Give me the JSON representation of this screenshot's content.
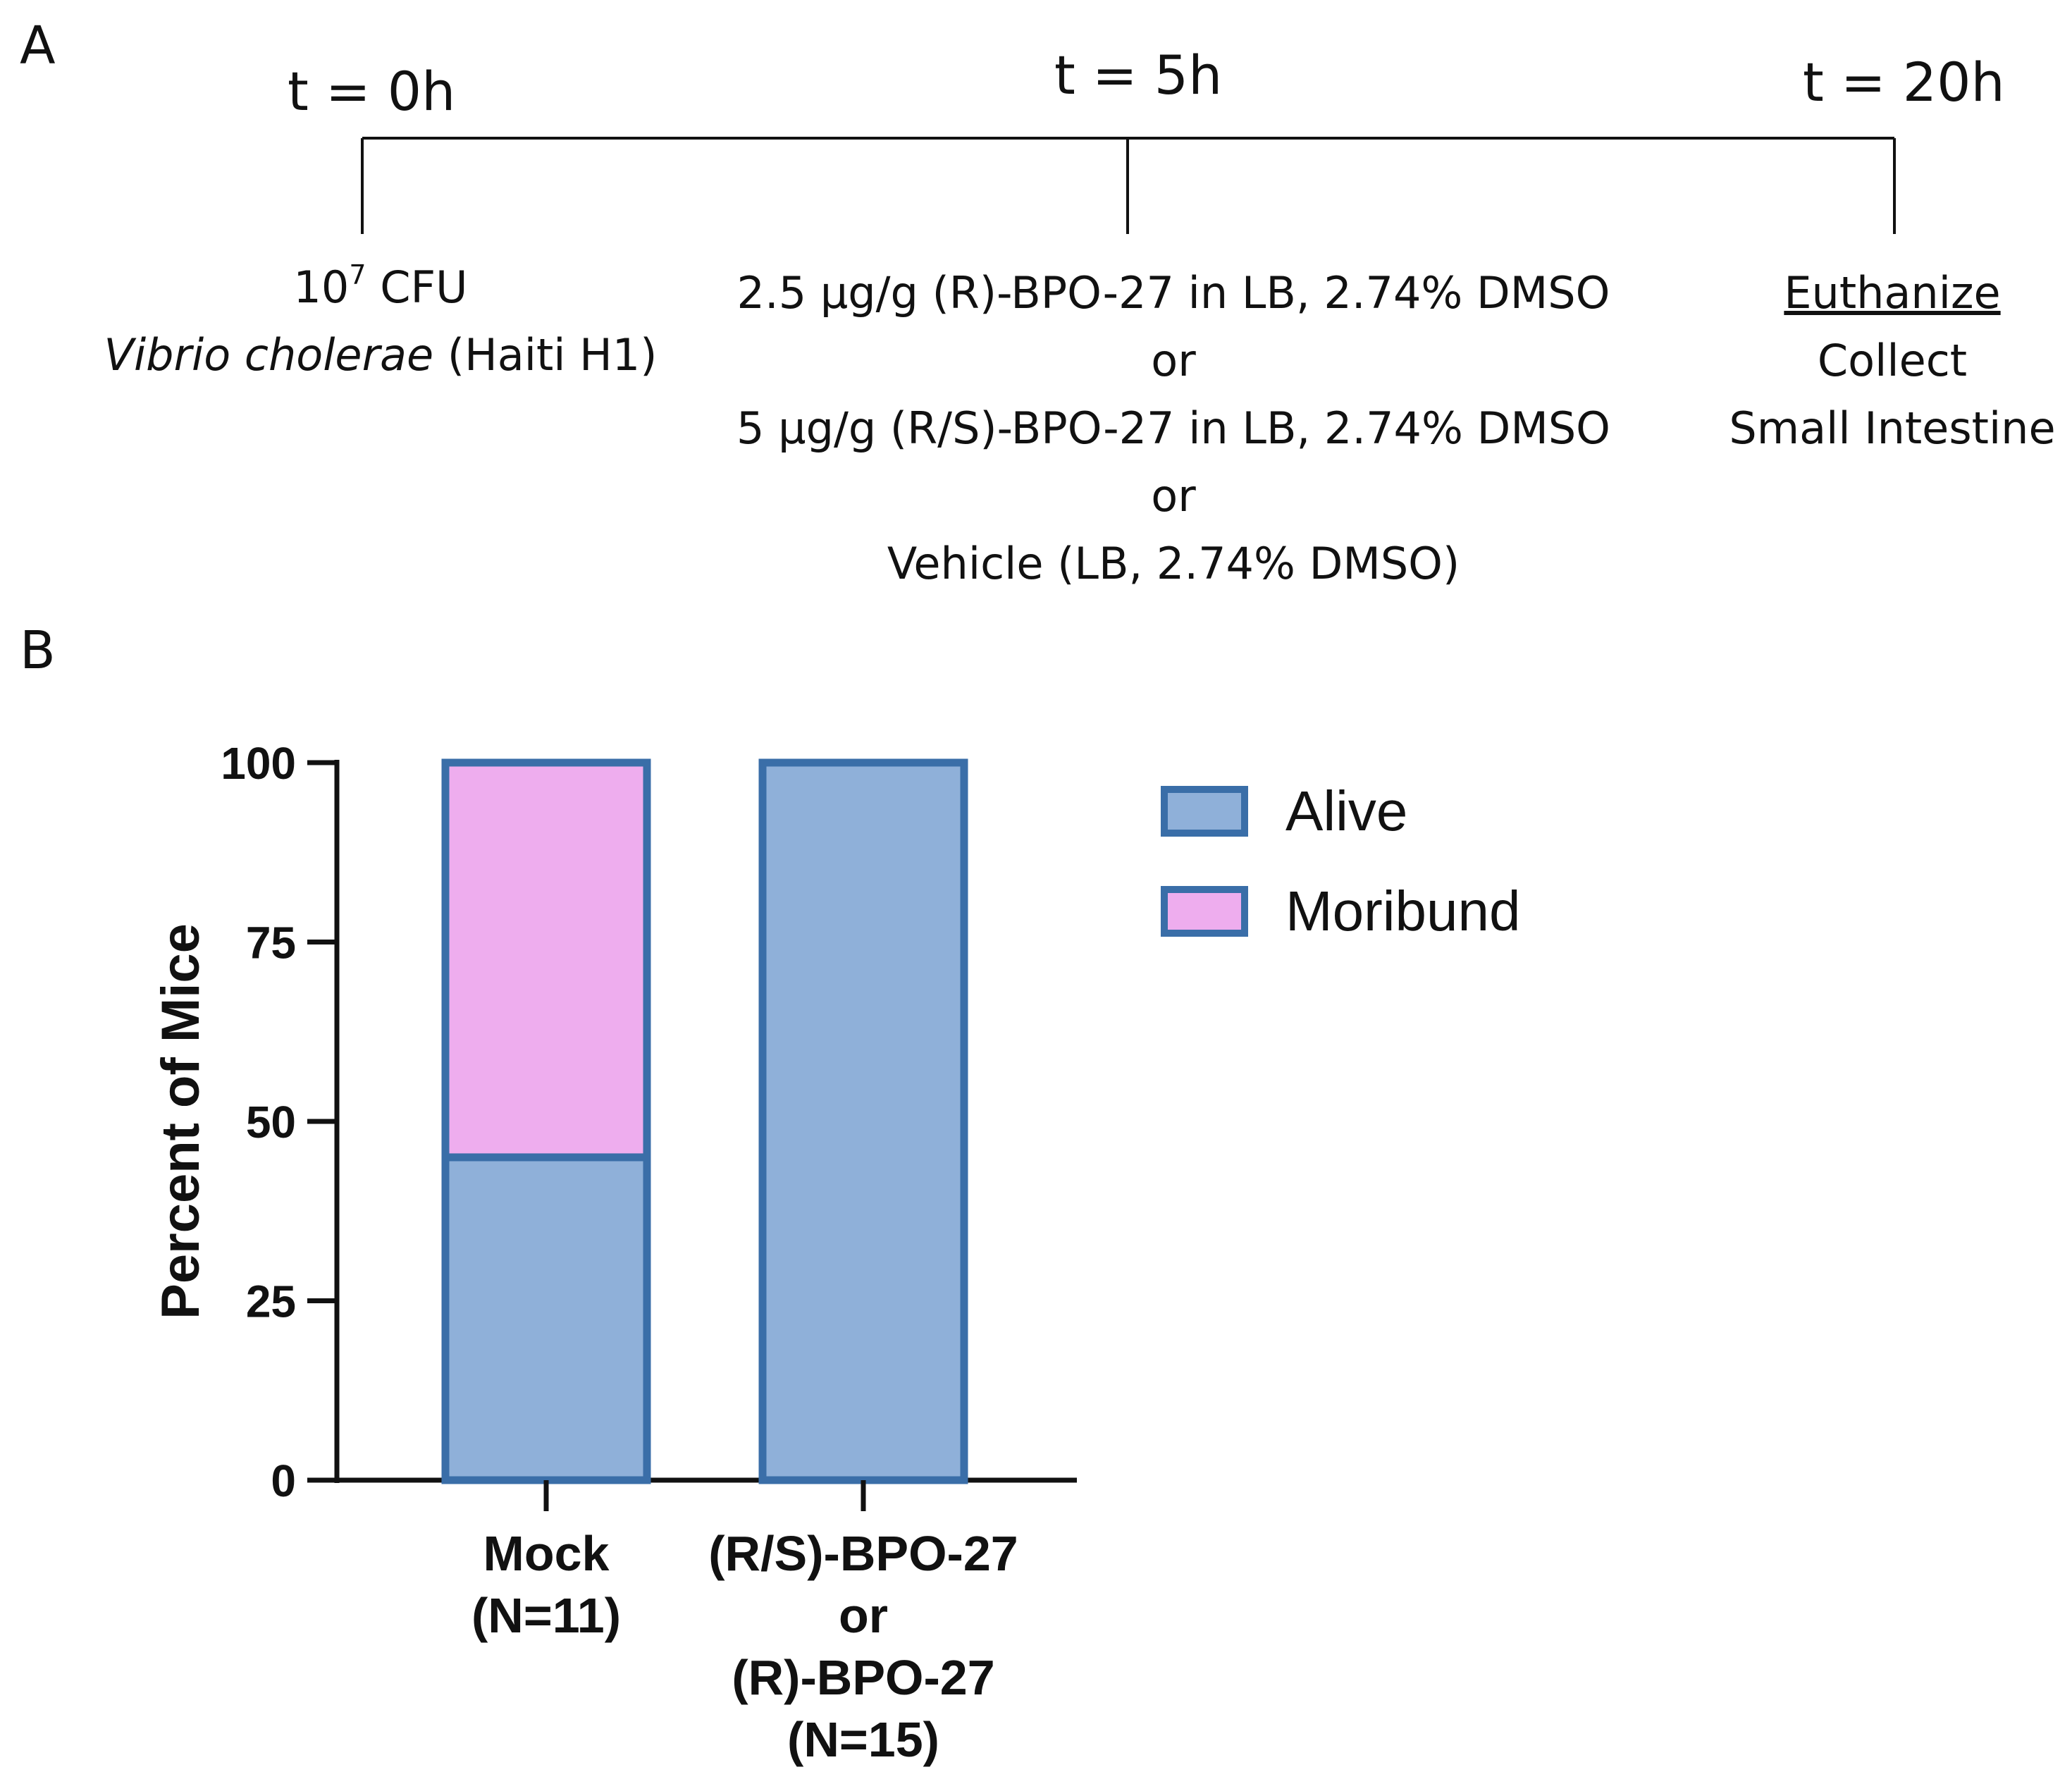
{
  "panel_a": {
    "label": "A",
    "times": [
      "t = 0h",
      "t = 5h",
      "t = 20h"
    ],
    "step0": {
      "line1_base": "10",
      "line1_exp": "7",
      "line1_rest": " CFU",
      "line2_italic": "Vibrio cholerae",
      "line2_rest": " (Haiti H1)"
    },
    "step1": [
      "2.5 µg/g (R)-BPO-27 in LB, 2.74% DMSO",
      "or",
      "5 µg/g (R/S)-BPO-27 in LB, 2.74% DMSO",
      "or",
      "Vehicle (LB, 2.74% DMSO)"
    ],
    "step2": [
      "Euthanize",
      "Collect",
      "Small Intestine"
    ]
  },
  "panel_b": {
    "label": "B"
  },
  "colors": {
    "alive": "#8fb0d9",
    "moribund": "#eeadee",
    "outline": "#3a6ea8",
    "axis": "#111111"
  },
  "chart_data": {
    "type": "bar",
    "stacked": true,
    "categories": [
      [
        "Mock",
        "(N=11)"
      ],
      [
        "(R/S)-BPO-27",
        "or",
        "(R)-BPO-27",
        "(N=15)"
      ]
    ],
    "series": [
      {
        "name": "Alive",
        "values": [
          45,
          100
        ]
      },
      {
        "name": "Moribund",
        "values": [
          55,
          0
        ]
      }
    ],
    "ylabel": "Percent of Mice",
    "xlabel": "",
    "ylim": [
      0,
      100
    ],
    "yticks": [
      0,
      25,
      50,
      75,
      100
    ],
    "grid": false,
    "legend": "top-right"
  }
}
